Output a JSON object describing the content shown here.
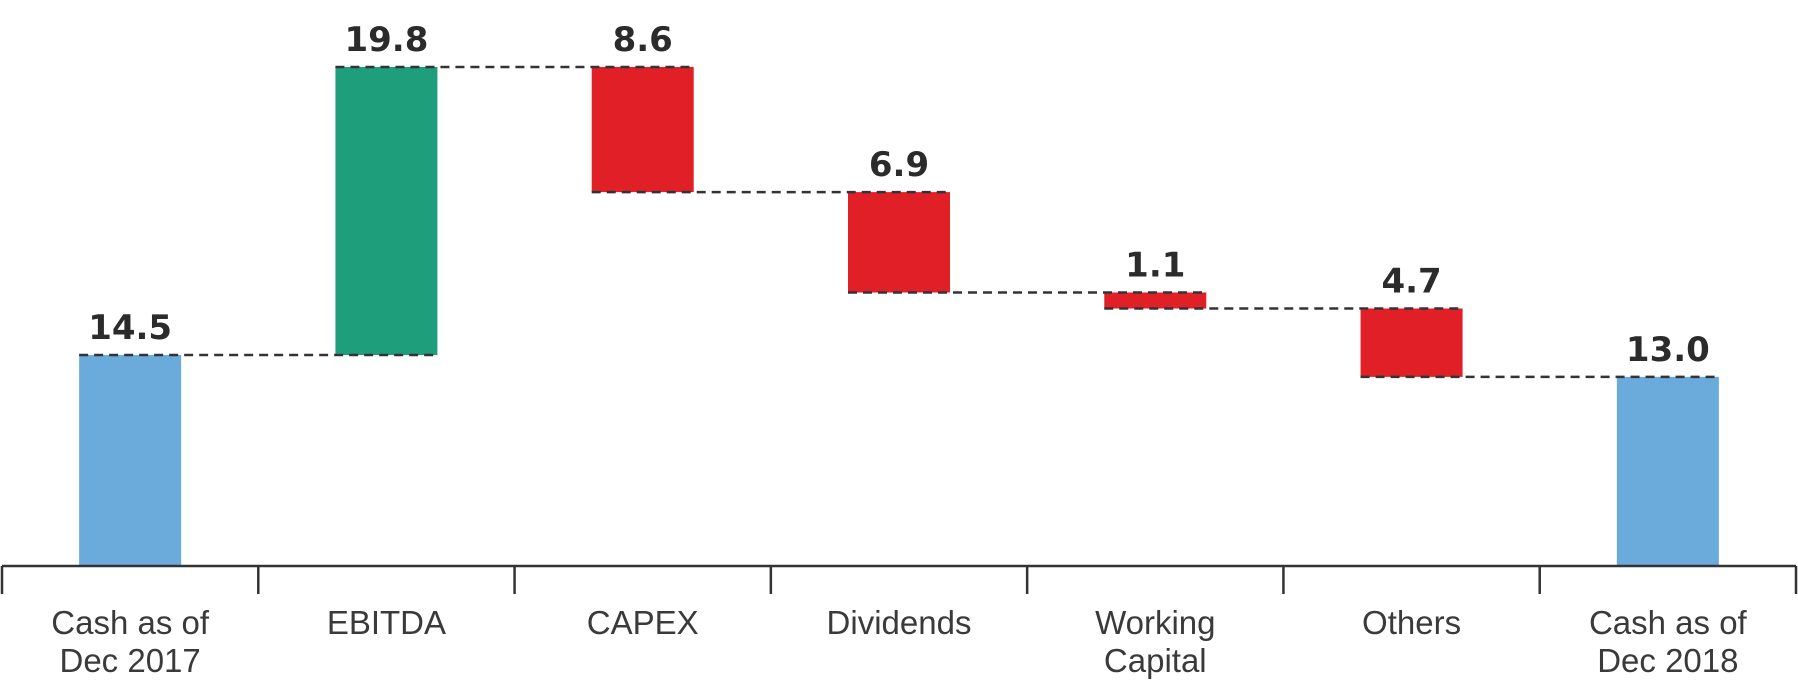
{
  "chart_data": {
    "type": "waterfall",
    "title": "",
    "xlabel": "",
    "ylabel": "",
    "categories": [
      [
        "Cash as of",
        "Dec 2017"
      ],
      [
        "EBITDA"
      ],
      [
        "CAPEX"
      ],
      [
        "Dividends"
      ],
      [
        "Working",
        "Capital"
      ],
      [
        "Others"
      ],
      [
        "Cash as of",
        "Dec 2018"
      ]
    ],
    "steps": [
      {
        "kind": "total",
        "value": 14.5,
        "label": "14.5"
      },
      {
        "kind": "increase",
        "value": 19.8,
        "label": "19.8"
      },
      {
        "kind": "decrease",
        "value": 8.6,
        "label": "8.6"
      },
      {
        "kind": "decrease",
        "value": 6.9,
        "label": "6.9"
      },
      {
        "kind": "decrease",
        "value": 1.1,
        "label": "1.1"
      },
      {
        "kind": "decrease",
        "value": 4.7,
        "label": "4.7"
      },
      {
        "kind": "total",
        "value": 13.0,
        "label": "13.0"
      }
    ],
    "colors": {
      "total": "#6aabdc",
      "increase": "#1f9e7c",
      "decrease": "#e01f26"
    },
    "ylim": [
      0,
      34.3
    ],
    "grid": false,
    "legend": "none"
  }
}
